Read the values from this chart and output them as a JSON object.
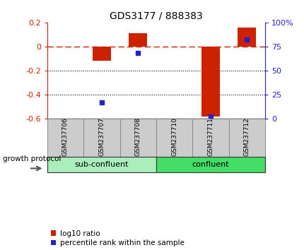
{
  "title": "GDS3177 / 888383",
  "samples": [
    "GSM237706",
    "GSM237707",
    "GSM237708",
    "GSM237710",
    "GSM237711",
    "GSM237712"
  ],
  "log10_ratio": [
    0.0,
    -0.12,
    0.11,
    0.0,
    -0.585,
    0.16
  ],
  "percentile_rank": [
    null,
    17.0,
    68.0,
    null,
    2.0,
    82.0
  ],
  "ylim_left": [
    -0.6,
    0.2
  ],
  "ylim_right": [
    0,
    100
  ],
  "yticks_left": [
    0.2,
    0.0,
    -0.2,
    -0.4,
    -0.6
  ],
  "ytick_labels_left": [
    "0.2",
    "0",
    "-0.2",
    "-0.4",
    "-0.6"
  ],
  "yticks_right": [
    100,
    75,
    50,
    25,
    0
  ],
  "ytick_labels_right": [
    "100%",
    "75",
    "50",
    "25",
    "0"
  ],
  "hline_dotted": [
    -0.2,
    -0.4
  ],
  "hline_zero_color": "#CC2200",
  "bar_color": "#CC2200",
  "dot_color": "#2222CC",
  "left_axis_color": "#CC2200",
  "right_axis_color": "#2222CC",
  "group_configs": [
    {
      "start": 0,
      "end": 2,
      "label": "sub-confluent",
      "color": "#AAEEBB"
    },
    {
      "start": 3,
      "end": 5,
      "label": "confluent",
      "color": "#44DD66"
    }
  ],
  "group_label": "growth protocol",
  "legend_labels": [
    "log10 ratio",
    "percentile rank within the sample"
  ],
  "bar_width": 0.5
}
